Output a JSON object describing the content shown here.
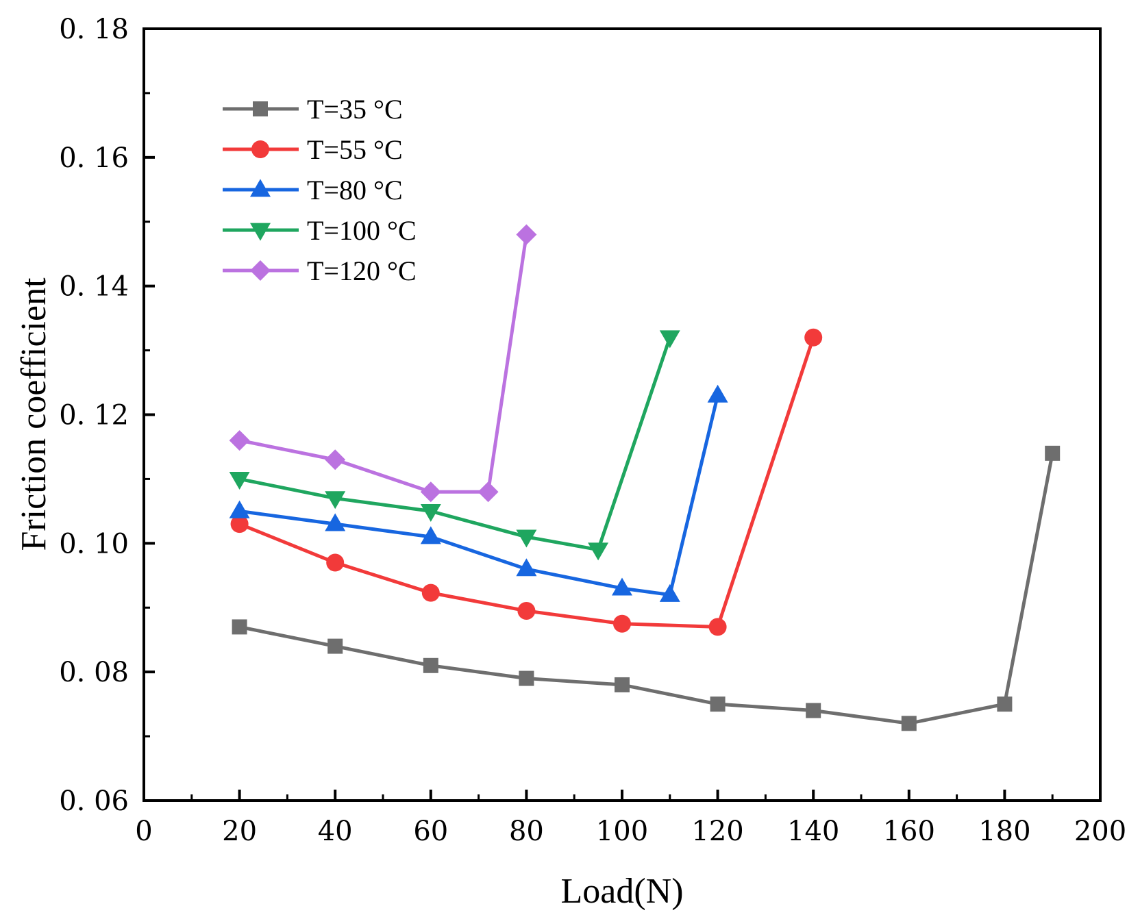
{
  "chart_data": {
    "type": "line",
    "xlabel": "Load(N)",
    "ylabel": "Friction coefficient",
    "xlim": [
      0,
      200
    ],
    "ylim": [
      0.06,
      0.18
    ],
    "xticks": [
      0,
      20,
      40,
      60,
      80,
      100,
      120,
      140,
      160,
      180,
      200
    ],
    "xtick_labels": [
      "0",
      "20",
      "40",
      "60",
      "80",
      "100",
      "120",
      "140",
      "160",
      "180",
      "200"
    ],
    "yticks": [
      0.06,
      0.08,
      0.1,
      0.12,
      0.14,
      0.16,
      0.18
    ],
    "ytick_labels": [
      "0. 06",
      "0. 08",
      "0. 10",
      "0. 12",
      "0. 14",
      "0. 16",
      "0. 18"
    ],
    "grid": false,
    "legend_position": "top-left",
    "series": [
      {
        "name": "T=35 °C",
        "color": "#6e6e6e",
        "marker": "square",
        "x": [
          20,
          40,
          60,
          80,
          100,
          120,
          140,
          160,
          180,
          190
        ],
        "y": [
          0.087,
          0.084,
          0.081,
          0.079,
          0.078,
          0.075,
          0.074,
          0.072,
          0.075,
          0.114
        ]
      },
      {
        "name": "T=55 °C",
        "color": "#f23a3a",
        "marker": "circle",
        "x": [
          20,
          40,
          60,
          80,
          100,
          120,
          140
        ],
        "y": [
          0.103,
          0.097,
          0.0923,
          0.0895,
          0.0875,
          0.087,
          0.132
        ]
      },
      {
        "name": "T=80 °C",
        "color": "#1766e0",
        "marker": "triangle-up",
        "x": [
          20,
          40,
          60,
          80,
          100,
          110,
          120
        ],
        "y": [
          0.105,
          0.103,
          0.101,
          0.096,
          0.093,
          0.092,
          0.123
        ]
      },
      {
        "name": "T=100 °C",
        "color": "#1fa65f",
        "marker": "triangle-down",
        "x": [
          20,
          40,
          60,
          80,
          95,
          110
        ],
        "y": [
          0.11,
          0.107,
          0.105,
          0.101,
          0.099,
          0.132
        ]
      },
      {
        "name": "T=120 °C",
        "color": "#bb72e0",
        "marker": "diamond",
        "x": [
          20,
          40,
          60,
          72,
          80
        ],
        "y": [
          0.116,
          0.113,
          0.108,
          0.108,
          0.148
        ]
      }
    ]
  }
}
